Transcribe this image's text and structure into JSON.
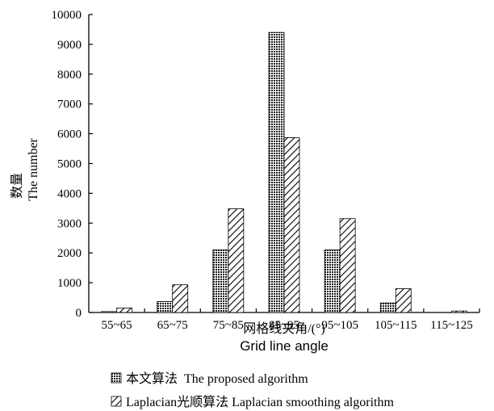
{
  "chart_data": {
    "type": "bar",
    "ylabel_cn": "数量",
    "ylabel_en": "The number",
    "xlabel_cn": "网格线夹角/(°)",
    "xlabel_en": "Grid line angle",
    "categories": [
      "55~65",
      "65~75",
      "75~85",
      "85~95",
      "95~105",
      "105~115",
      "115~125"
    ],
    "yticks": [
      "0",
      "1000",
      "2000",
      "3000",
      "4000",
      "5000",
      "6000",
      "7000",
      "8000",
      "9000",
      "10000"
    ],
    "ylim": [
      0,
      10000
    ],
    "grid": false,
    "legend_position": "bottom",
    "series": [
      {
        "name": "本文算法  The proposed algorithm",
        "pattern": "crosshatch",
        "values": [
          30,
          370,
          2100,
          9400,
          2100,
          320,
          0
        ]
      },
      {
        "name": "Laplacian光顺算法 Laplacian smoothing algorithm",
        "pattern": "diagonal",
        "values": [
          150,
          930,
          3480,
          5870,
          3150,
          800,
          50
        ]
      }
    ]
  }
}
